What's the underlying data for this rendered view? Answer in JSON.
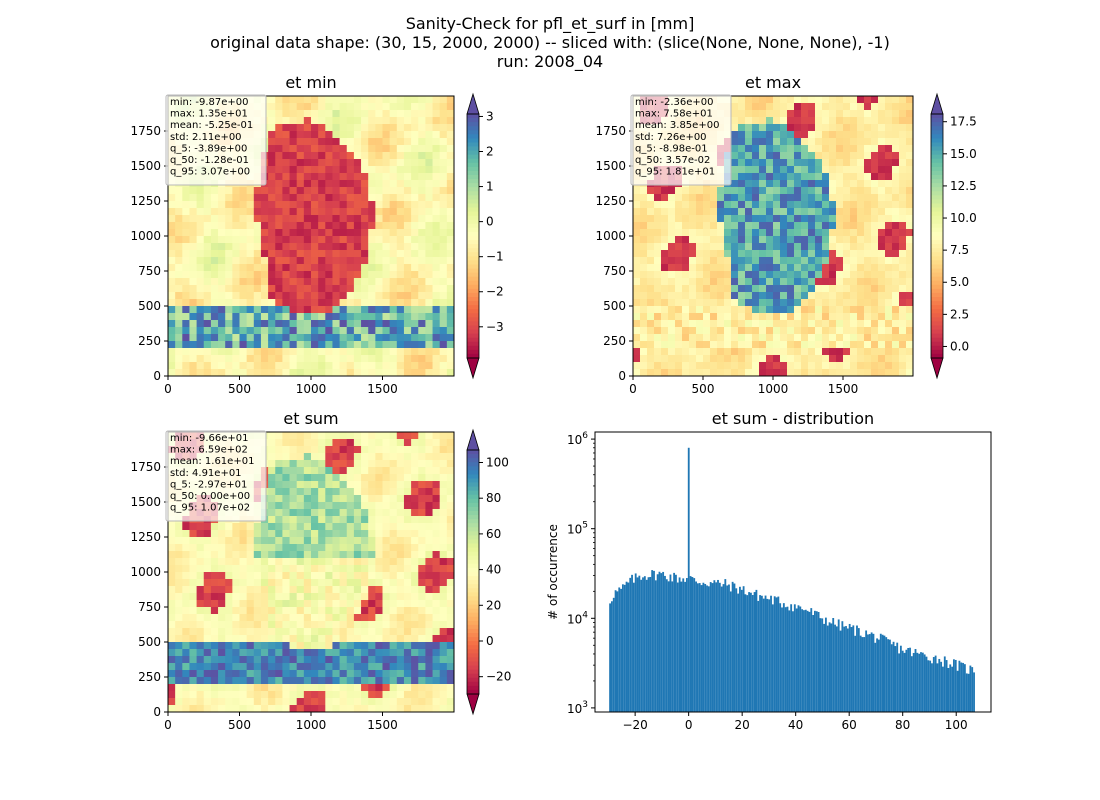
{
  "figure": {
    "title_lines": [
      "Sanity-Check for pfl_et_surf in [mm]",
      "original data shape: (30, 15, 2000, 2000) -- sliced with: (slice(None, None, None), -1)",
      "run: 2008_04"
    ]
  },
  "chart_data": [
    {
      "type": "heatmap",
      "title": "et min",
      "colormap": "Spectral",
      "x_ticks": [
        "0",
        "500",
        "1000",
        "1500"
      ],
      "y_ticks": [
        "0",
        "250",
        "500",
        "750",
        "1000",
        "1250",
        "1500",
        "1750"
      ],
      "xlim": [
        0,
        2000
      ],
      "ylim": [
        0,
        2000
      ],
      "colorbar": {
        "min": -3.89,
        "max": 3.07,
        "ticks": [
          3,
          2,
          1,
          0,
          -1,
          -2,
          -3
        ],
        "tick_labels": [
          "3",
          "2",
          "1",
          "0",
          "−1",
          "−2",
          "−3"
        ],
        "extend": "both"
      },
      "stats": [
        "min: -9.87e+00",
        "max: 1.35e+01",
        "mean: -5.25e-01",
        "std: 2.11e+00",
        "q_5: -3.89e+00",
        "q_50: -1.28e-01",
        "q_95: 3.07e+00"
      ]
    },
    {
      "type": "heatmap",
      "title": "et max",
      "colormap": "Spectral",
      "x_ticks": [
        "0",
        "500",
        "1000",
        "1500"
      ],
      "y_ticks": [
        "0",
        "250",
        "500",
        "750",
        "1000",
        "1250",
        "1500",
        "1750"
      ],
      "xlim": [
        0,
        2000
      ],
      "ylim": [
        0,
        2000
      ],
      "colorbar": {
        "min": -0.898,
        "max": 18.1,
        "ticks": [
          17.5,
          15.0,
          12.5,
          10.0,
          7.5,
          5.0,
          2.5,
          0.0
        ],
        "tick_labels": [
          "17.5",
          "15.0",
          "12.5",
          "10.0",
          "7.5",
          "5.0",
          "2.5",
          "0.0"
        ],
        "extend": "both"
      },
      "stats": [
        "min: -2.36e+00",
        "max: 7.58e+01",
        "mean: 3.85e+00",
        "std: 7.26e+00",
        "q_5: -8.98e-01",
        "q_50: 3.57e-02",
        "q_95: 1.81e+01"
      ]
    },
    {
      "type": "heatmap",
      "title": "et sum",
      "colormap": "Spectral",
      "x_ticks": [
        "0",
        "500",
        "1000",
        "1500"
      ],
      "y_ticks": [
        "0",
        "250",
        "500",
        "750",
        "1000",
        "1250",
        "1500",
        "1750"
      ],
      "xlim": [
        0,
        2000
      ],
      "ylim": [
        0,
        2000
      ],
      "colorbar": {
        "min": -29.7,
        "max": 107,
        "ticks": [
          100,
          80,
          60,
          40,
          20,
          0,
          -20
        ],
        "tick_labels": [
          "100",
          "80",
          "60",
          "40",
          "20",
          "0",
          "−20"
        ],
        "extend": "both"
      },
      "stats": [
        "min: -9.66e+01",
        "max: 6.59e+02",
        "mean: 1.61e+01",
        "std: 4.91e+01",
        "q_5: -2.97e+01",
        "q_50: 0.00e+00",
        "q_95: 1.07e+02"
      ]
    },
    {
      "type": "bar",
      "title": "et sum - distribution",
      "ylabel": "# of occurrence",
      "xlabel": "",
      "yscale": "log",
      "xlim": [
        -35,
        113
      ],
      "ylim": [
        900,
        1200000
      ],
      "x_ticks": [
        -20,
        0,
        20,
        40,
        60,
        80,
        100
      ],
      "x_tick_labels": [
        "−20",
        "0",
        "20",
        "40",
        "60",
        "80",
        "100"
      ],
      "y_ticks": [
        1000,
        10000,
        100000,
        1000000
      ],
      "y_tick_labels": [
        {
          "base": "10",
          "exp": "3"
        },
        {
          "base": "10",
          "exp": "4"
        },
        {
          "base": "10",
          "exp": "5"
        },
        {
          "base": "10",
          "exp": "6"
        }
      ],
      "color": "#1f77b4",
      "bin_range": [
        -29.7,
        107
      ],
      "bins": 200,
      "envelope": [
        [
          -29.7,
          15000
        ],
        [
          -28,
          19000
        ],
        [
          -25,
          21000
        ],
        [
          -22,
          26000
        ],
        [
          -18,
          30000
        ],
        [
          -14,
          31000
        ],
        [
          -10,
          31000
        ],
        [
          -6,
          29000
        ],
        [
          -3,
          28000
        ],
        [
          0,
          28000
        ],
        [
          3,
          26000
        ],
        [
          8,
          25000
        ],
        [
          14,
          24000
        ],
        [
          20,
          21000
        ],
        [
          26,
          18000
        ],
        [
          32,
          16000
        ],
        [
          38,
          14000
        ],
        [
          44,
          12500
        ],
        [
          50,
          10000
        ],
        [
          56,
          8500
        ],
        [
          62,
          7500
        ],
        [
          68,
          6500
        ],
        [
          74,
          5500
        ],
        [
          80,
          4500
        ],
        [
          86,
          4000
        ],
        [
          92,
          3600
        ],
        [
          98,
          3200
        ],
        [
          103,
          2800
        ],
        [
          107,
          2600
        ]
      ],
      "spike": {
        "x": 0,
        "value": 800000
      }
    }
  ],
  "colors": {
    "spectral": [
      "#9e0142",
      "#d53e4f",
      "#f46d43",
      "#fdae61",
      "#fee08b",
      "#ffffbf",
      "#e6f598",
      "#abdda4",
      "#66c2a5",
      "#3288bd",
      "#5e4fa2"
    ],
    "bar": "#1f77b4",
    "stats_box_border": "#b8b8b8"
  }
}
